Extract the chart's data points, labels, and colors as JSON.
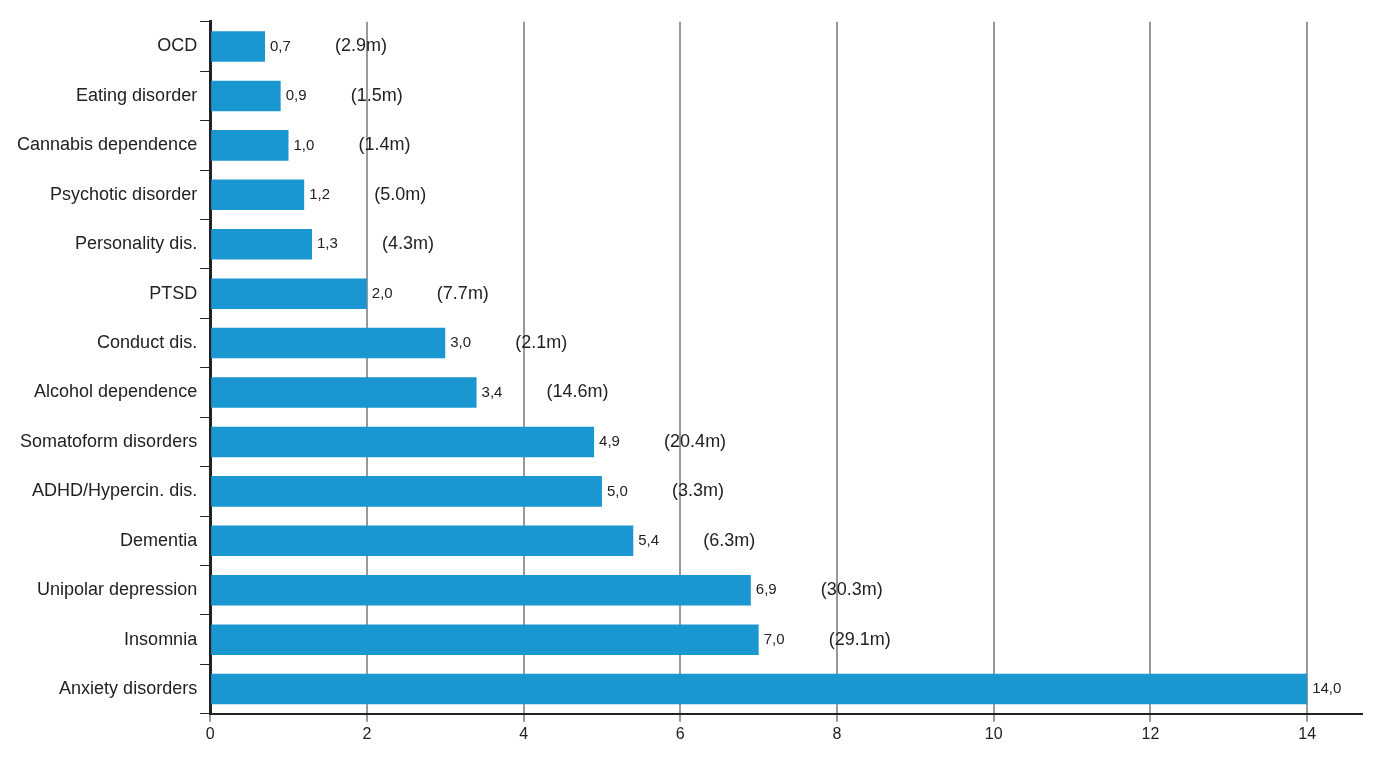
{
  "chart_data": {
    "type": "bar",
    "orientation": "horizontal",
    "categories": [
      "OCD",
      "Eating disorder",
      "Cannabis dependence",
      "Psychotic disorder",
      "Personality dis.",
      "PTSD",
      "Conduct dis.",
      "Alcohol dependence",
      "Somatoform disorders",
      "ADHD/Hypercin. dis.",
      "Dementia",
      "Unipolar depression",
      "Insomnia",
      "Anxiety disorders"
    ],
    "values": [
      0.7,
      0.9,
      1.0,
      1.2,
      1.3,
      2.0,
      3.0,
      3.4,
      4.9,
      5.0,
      5.4,
      6.9,
      7.0,
      14.0
    ],
    "value_labels": [
      "0,7",
      "0,9",
      "1,0",
      "1,2",
      "1,3",
      "2,0",
      "3,0",
      "3,4",
      "4,9",
      "5,0",
      "5,4",
      "6,9",
      "7,0",
      "14,0"
    ],
    "color": "#1a96d0",
    "xlim": [
      0,
      14.7
    ],
    "xticks": [
      0,
      2,
      4,
      6,
      8,
      10,
      12,
      14
    ],
    "grid": "x",
    "annotations": [
      "(2.9m)",
      "(1.5m)",
      "(1.4m)",
      "(5.0m)",
      "(4.3m)",
      "(7.7m)",
      "(2.1m)",
      "(14.6m)",
      "(20.4m)",
      "(3.3m)",
      "(6.3m)",
      "(30.3m)",
      "(29.1m)"
    ]
  }
}
